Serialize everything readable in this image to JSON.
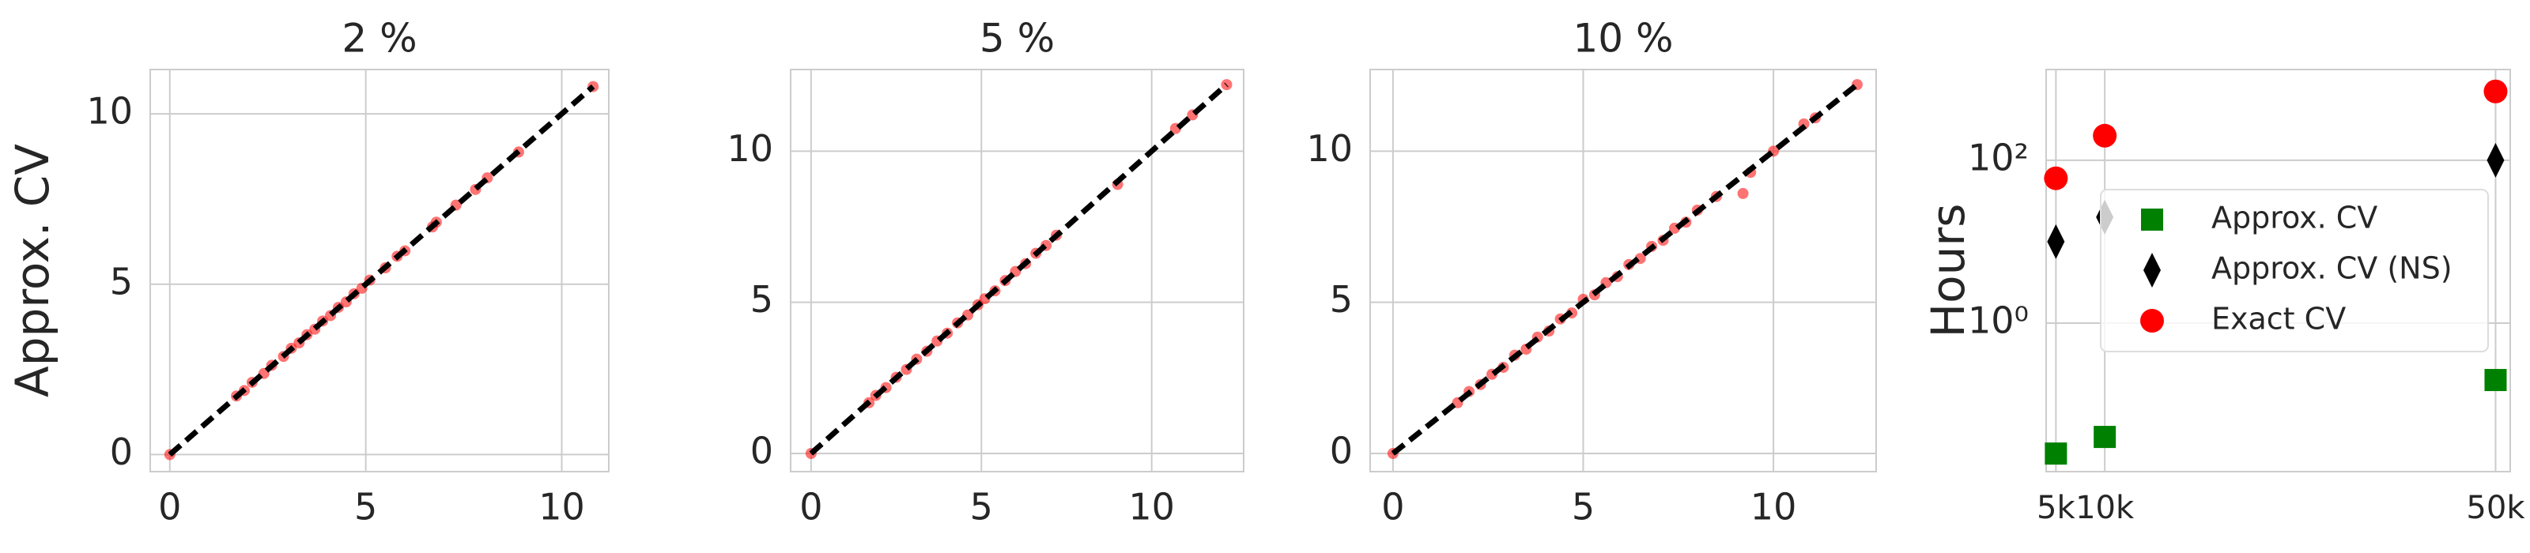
{
  "chart_data": [
    {
      "type": "scatter",
      "title": "2 %",
      "y_label": "Approx. CV",
      "color": "#ff0000",
      "x": [
        0,
        1.7,
        1.9,
        2.1,
        2.4,
        2.6,
        2.9,
        3.1,
        3.3,
        3.5,
        3.7,
        3.9,
        4.1,
        4.3,
        4.5,
        4.7,
        4.9,
        5.1,
        5.5,
        5.8,
        6.0,
        6.7,
        6.8,
        7.3,
        7.8,
        8.1,
        8.9,
        10.8
      ],
      "values": [
        0,
        1.72,
        1.88,
        2.12,
        2.38,
        2.62,
        2.88,
        3.12,
        3.28,
        3.52,
        3.68,
        3.92,
        4.08,
        4.32,
        4.48,
        4.72,
        4.88,
        5.12,
        5.48,
        5.82,
        5.98,
        6.68,
        6.82,
        7.32,
        7.78,
        8.12,
        8.88,
        10.8
      ],
      "reference_line": {
        "x": [
          0,
          10.8
        ],
        "values": [
          0,
          10.8
        ],
        "color": "#000000"
      },
      "xlim": [
        -0.5,
        11.2
      ],
      "ylim": [
        -0.5,
        11.3
      ],
      "xticks": [
        0,
        5,
        10
      ],
      "yticks": [
        0,
        5,
        10
      ],
      "grid": true
    },
    {
      "type": "scatter",
      "title": "5 %",
      "color": "#ff0000",
      "x": [
        0,
        1.7,
        1.9,
        2.2,
        2.5,
        2.8,
        3.1,
        3.4,
        3.7,
        4.0,
        4.3,
        4.6,
        4.9,
        5.1,
        5.4,
        5.7,
        6.0,
        6.3,
        6.6,
        6.9,
        7.2,
        9.0,
        10.7,
        11.2,
        12.2
      ],
      "values": [
        0,
        1.68,
        1.92,
        2.18,
        2.52,
        2.78,
        3.12,
        3.38,
        3.72,
        3.98,
        4.32,
        4.58,
        4.92,
        5.12,
        5.38,
        5.72,
        6.02,
        6.28,
        6.62,
        6.88,
        7.22,
        8.9,
        10.75,
        11.2,
        12.2
      ],
      "reference_line": {
        "x": [
          0,
          12.2
        ],
        "values": [
          0,
          12.2
        ],
        "color": "#000000"
      },
      "xlim": [
        -0.6,
        12.7
      ],
      "ylim": [
        -0.6,
        12.7
      ],
      "xticks": [
        0,
        5,
        10
      ],
      "yticks": [
        0,
        5,
        10
      ],
      "grid": true
    },
    {
      "type": "scatter",
      "title": "10 %",
      "color": "#ff0000",
      "x": [
        0,
        1.7,
        2.0,
        2.3,
        2.6,
        2.9,
        3.2,
        3.5,
        3.8,
        4.1,
        4.4,
        4.7,
        5.0,
        5.3,
        5.6,
        5.9,
        6.2,
        6.5,
        6.8,
        7.1,
        7.4,
        7.7,
        8.0,
        8.5,
        9.2,
        9.4,
        10.0,
        10.8,
        11.1,
        12.2
      ],
      "values": [
        0,
        1.68,
        2.05,
        2.28,
        2.62,
        2.85,
        3.25,
        3.45,
        3.85,
        4.05,
        4.45,
        4.65,
        5.1,
        5.25,
        5.65,
        5.85,
        6.25,
        6.45,
        6.85,
        7.05,
        7.45,
        7.65,
        8.05,
        8.5,
        8.6,
        9.3,
        10.0,
        10.9,
        11.1,
        12.2
      ],
      "reference_line": {
        "x": [
          0,
          12.2
        ],
        "values": [
          0,
          12.2
        ],
        "color": "#000000"
      },
      "xlim": [
        -0.6,
        12.7
      ],
      "ylim": [
        -0.6,
        12.7
      ],
      "xticks": [
        0,
        5,
        10
      ],
      "yticks": [
        0,
        5,
        10
      ],
      "grid": true
    },
    {
      "type": "scatter",
      "y_label": "Hours",
      "log_y": true,
      "legend": "center right",
      "grid": true,
      "x": [
        5000,
        10000,
        50000
      ],
      "series": [
        {
          "name": "Approx. CV",
          "color": "#008000",
          "marker": "square",
          "values": [
            0.025,
            0.04,
            0.2
          ]
        },
        {
          "name": "Approx. CV (NS)",
          "color": "#000000",
          "marker": "diamond",
          "values": [
            10,
            20,
            100
          ]
        },
        {
          "name": "Exact CV",
          "color": "#ff0000",
          "marker": "circle",
          "values": [
            60,
            200,
            700
          ]
        }
      ],
      "xlim": [
        4000,
        51500
      ],
      "ylim": [
        0.015,
        1300
      ],
      "xticks": [
        {
          "value": 5000,
          "label": "5k"
        },
        {
          "value": 10000,
          "label": "10k"
        },
        {
          "value": 50000,
          "label": "50k"
        }
      ],
      "yticks": [
        {
          "value": 1,
          "label": "10⁰"
        },
        {
          "value": 100,
          "label": "10²"
        }
      ]
    }
  ]
}
